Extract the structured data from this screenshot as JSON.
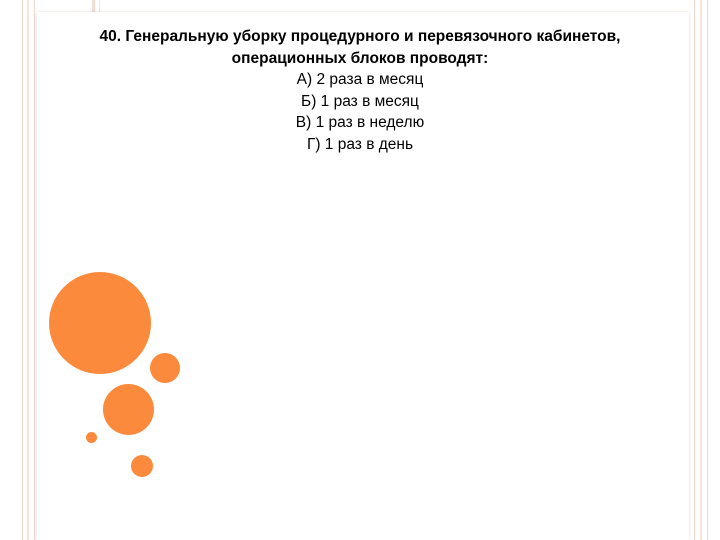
{
  "question": {
    "line1": "40. Генеральную уборку процедурного  и перевязочного кабинетов,",
    "line2": "операционных блоков проводят:"
  },
  "options": [
    "А)  2 раза в месяц",
    "Б)  1 раз в месяц",
    "В)  1 раз в неделю",
    "Г)  1 раз в день"
  ],
  "colors": {
    "accent": "#fb8a3c",
    "stripe": "#f2d6cc",
    "text": "#000000"
  }
}
